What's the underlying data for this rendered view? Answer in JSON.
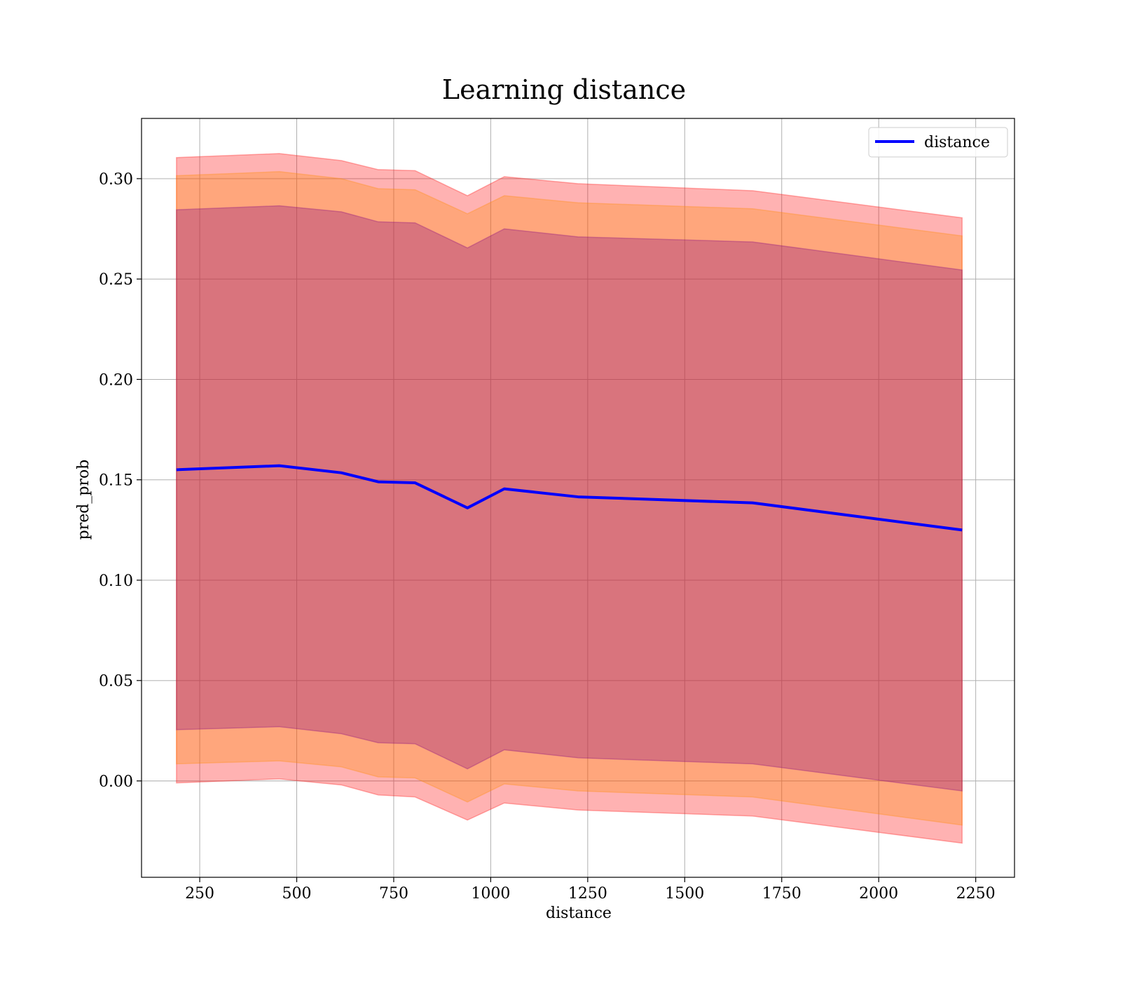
{
  "chart_data": {
    "type": "line",
    "title": "Learning distance",
    "xlabel": "distance",
    "ylabel": "pred_prob",
    "xlim": [
      100,
      2350
    ],
    "ylim": [
      -0.048,
      0.33
    ],
    "xticks": [
      250,
      500,
      750,
      1000,
      1250,
      1500,
      1750,
      2000,
      2250
    ],
    "yticks": [
      0.0,
      0.05,
      0.1,
      0.15,
      0.2,
      0.25,
      0.3
    ],
    "xtick_labels": [
      "250",
      "500",
      "750",
      "1000",
      "1250",
      "1500",
      "1750",
      "2000",
      "2250"
    ],
    "ytick_labels": [
      "0.00",
      "0.05",
      "0.10",
      "0.15",
      "0.20",
      "0.25",
      "0.30"
    ],
    "grid": true,
    "legend": {
      "position": "top-right",
      "entries": [
        "distance"
      ]
    },
    "x": [
      190,
      455,
      615,
      710,
      805,
      940,
      1035,
      1225,
      1675,
      2215
    ],
    "series": [
      {
        "name": "distance",
        "color": "#0000ff",
        "values": [
          0.155,
          0.157,
          0.1535,
          0.149,
          0.1485,
          0.136,
          0.1455,
          0.1415,
          0.1385,
          0.125
        ]
      }
    ],
    "bands": [
      {
        "label": "outer",
        "color": "#ff0000",
        "opacity": 0.3,
        "lower": [
          -0.001,
          0.001,
          -0.002,
          -0.007,
          -0.008,
          -0.0195,
          -0.011,
          -0.0145,
          -0.0175,
          -0.031
        ],
        "upper": [
          0.3105,
          0.3125,
          0.309,
          0.3045,
          0.304,
          0.2915,
          0.301,
          0.2975,
          0.294,
          0.2805
        ]
      },
      {
        "label": "middle",
        "color": "#ff8c00",
        "opacity": 0.3,
        "lower": [
          0.0085,
          0.01,
          0.007,
          0.002,
          0.0015,
          -0.0105,
          -0.0015,
          -0.005,
          -0.008,
          -0.022
        ],
        "upper": [
          0.3015,
          0.3035,
          0.3,
          0.295,
          0.2945,
          0.2825,
          0.2915,
          0.288,
          0.285,
          0.2715
        ]
      },
      {
        "label": "inner",
        "color": "#800080",
        "opacity": 0.3,
        "lower": [
          0.0255,
          0.027,
          0.0235,
          0.019,
          0.0185,
          0.006,
          0.0155,
          0.0115,
          0.0085,
          -0.005
        ],
        "upper": [
          0.2845,
          0.2865,
          0.2835,
          0.2785,
          0.278,
          0.2655,
          0.275,
          0.271,
          0.2685,
          0.2545
        ]
      }
    ]
  }
}
